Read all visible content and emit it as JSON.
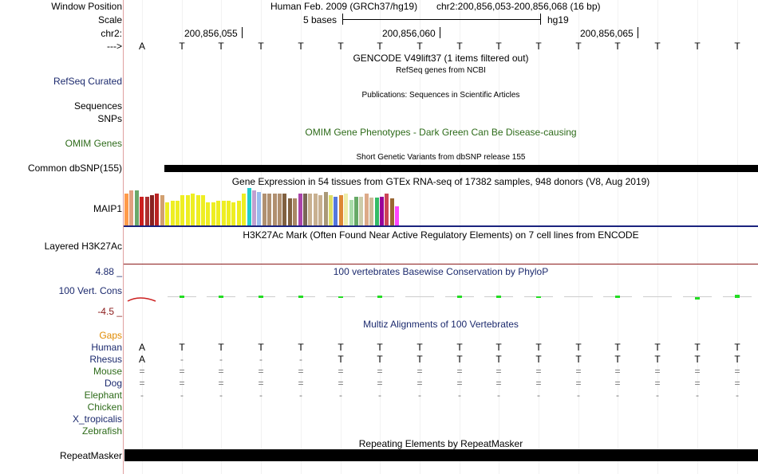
{
  "labels": {
    "window_position": "Window Position",
    "scale": "Scale",
    "chr": "chr2:",
    "arrow": "--->",
    "refseq": "RefSeq Curated",
    "sequences": "Sequences",
    "snps": "SNPs",
    "omim": "OMIM Genes",
    "dbsnp": "Common dbSNP(155)",
    "maip1": "MAIP1",
    "h3k27ac": "Layered H3K27Ac",
    "cons_max": "4.88 _",
    "cons_label": "100 Vert. Cons",
    "cons_min": "-4.5 _",
    "gaps": "Gaps",
    "repeatmasker": "RepeatMasker"
  },
  "header": {
    "assembly": "Human Feb. 2009 (GRCh37/hg19)",
    "position": "chr2:200,856,053-200,856,068 (16 bp)",
    "scale_text": "5 bases",
    "scale_db": "hg19",
    "coords": [
      "200,856,055",
      "200,856,060",
      "200,856,065"
    ]
  },
  "bases": [
    "A",
    "T",
    "T",
    "T",
    "T",
    "T",
    "T",
    "T",
    "T",
    "T",
    "T",
    "T",
    "T",
    "T",
    "T",
    "T"
  ],
  "tracks": {
    "gencode": "GENCODE V49lift37 (1 items filtered out)",
    "refseq_desc": "RefSeq genes from NCBI",
    "publications": "Publications: Sequences in Scientific Articles",
    "omim_desc": "OMIM Gene Phenotypes - Dark Green Can Be Disease-causing",
    "dbsnp_desc": "Short Genetic Variants from dbSNP release 155",
    "gtex_desc": "Gene Expression in 54 tissues from GTEx RNA-seq of 17382 samples, 948 donors (V8, Aug 2019)",
    "h3k27ac_desc": "H3K27Ac Mark (Often Found Near Active Regulatory Elements) on 7 cell lines from ENCODE",
    "phylop_desc": "100 vertebrates Basewise Conservation by PhyloP",
    "multiz_desc": "Multiz Alignments of 100 Vertebrates",
    "repeat_desc": "Repeating Elements by RepeatMasker"
  },
  "gtex": {
    "values": [
      40,
      44,
      44,
      36,
      36,
      38,
      40,
      38,
      29,
      31,
      31,
      38,
      38,
      40,
      38,
      38,
      29,
      29,
      31,
      31,
      31,
      29,
      31,
      40,
      47,
      44,
      42,
      40,
      40,
      40,
      40,
      40,
      34,
      34,
      40,
      40,
      40,
      40,
      38,
      42,
      38,
      36,
      38,
      40,
      32,
      36,
      36,
      40,
      35,
      35,
      36,
      40,
      34,
      24
    ],
    "colors": [
      "#ff9a4a",
      "#e0a080",
      "#6aa86a",
      "#cc2020",
      "#aa3030",
      "#882020",
      "#bb2222",
      "#d2a070",
      "#eeee22",
      "#eeee22",
      "#eeee22",
      "#eeee22",
      "#eeee22",
      "#eeee22",
      "#eeee22",
      "#eeee22",
      "#eeee22",
      "#eeee22",
      "#eeee22",
      "#eeee22",
      "#eeee22",
      "#eeee22",
      "#eeee22",
      "#eeee22",
      "#22cccc",
      "#c0a0d0",
      "#99bbee",
      "#b09070",
      "#b09070",
      "#b09070",
      "#b09070",
      "#806040",
      "#806040",
      "#aa8866",
      "#aa44aa",
      "#776655",
      "#c8b090",
      "#c8b090",
      "#c8b090",
      "#aa9977",
      "#dddd66",
      "#5577dd",
      "#dd8833",
      "#eeeeaa",
      "#aaddaa",
      "#66aa66",
      "#ccccaa",
      "#ddaa88",
      "#ccbb99",
      "#33bb66",
      "#990099",
      "#cc4455",
      "#996633",
      "#ff44ff"
    ]
  },
  "phylop": {
    "scores": [
      -1.5,
      0.6,
      0.6,
      0.6,
      0.6,
      0.2,
      0.6,
      0.0,
      0.6,
      0.6,
      0.4,
      0.0,
      0.6,
      0.0,
      -0.6,
      0.8
    ]
  },
  "multiz": {
    "species": [
      {
        "name": "Human",
        "color": "#1c2a6e",
        "row": [
          "A",
          "T",
          "T",
          "T",
          "T",
          "T",
          "T",
          "T",
          "T",
          "T",
          "T",
          "T",
          "T",
          "T",
          "T",
          "T"
        ]
      },
      {
        "name": "Rhesus",
        "color": "#1c2a6e",
        "row": [
          "A",
          "-",
          "-",
          "-",
          "-",
          "T",
          "T",
          "T",
          "T",
          "T",
          "T",
          "T",
          "T",
          "T",
          "T",
          "T"
        ]
      },
      {
        "name": "Mouse",
        "color": "#2e6b1a",
        "row": [
          "=",
          "=",
          "=",
          "=",
          "=",
          "=",
          "=",
          "=",
          "=",
          "=",
          "=",
          "=",
          "=",
          "=",
          "=",
          "="
        ]
      },
      {
        "name": "Dog",
        "color": "#1c2a6e",
        "row": [
          "=",
          "=",
          "=",
          "=",
          "=",
          "=",
          "=",
          "=",
          "=",
          "=",
          "=",
          "=",
          "=",
          "=",
          "=",
          "="
        ]
      },
      {
        "name": "Elephant",
        "color": "#2e6b1a",
        "row": [
          "-",
          "-",
          "-",
          "-",
          "-",
          "-",
          "-",
          "-",
          "-",
          "-",
          "-",
          "-",
          "-",
          "-",
          "-",
          "-"
        ]
      },
      {
        "name": "Chicken",
        "color": "#2e6b1a",
        "row": []
      },
      {
        "name": "X_tropicalis",
        "color": "#1c2a6e",
        "row": []
      },
      {
        "name": "Zebrafish",
        "color": "#2e6b1a",
        "row": []
      }
    ]
  },
  "colors": {
    "navy": "#1c2a6e",
    "green": "#2e6b1a",
    "orange": "#e08a00",
    "cons_green": "#22dd22",
    "maroon": "#8b1a1a"
  }
}
